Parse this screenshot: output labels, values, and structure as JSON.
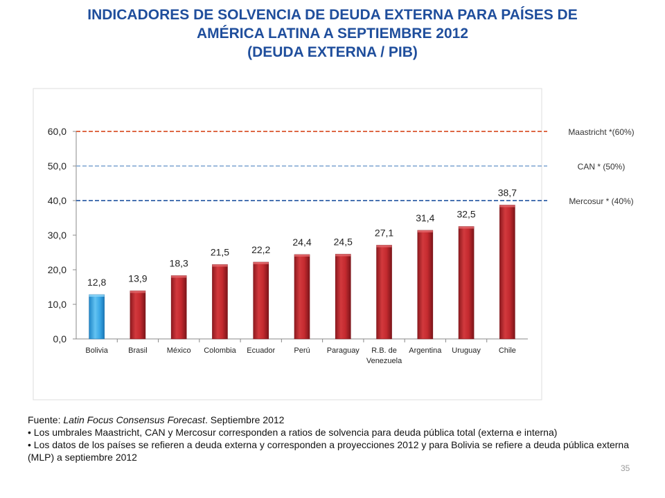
{
  "header": {
    "title_line1": "INDICADORES DE SOLVENCIA DE DEUDA EXTERNA PARA PAÍSES DE",
    "title_line2": "AMÉRICA LATINA A SEPTIEMBRE 2012",
    "title_line3": "(DEUDA EXTERNA / PIB)"
  },
  "chart_data": {
    "type": "bar",
    "title": "INDICADORES DE SOLVENCIA DE DEUDA EXTERNA PARA PAÍSES DE AMÉRICA LATINA A SEPTIEMBRE 2012 (DEUDA EXTERNA / PIB)",
    "categories": [
      "Bolivia",
      "Brasil",
      "México",
      "Colombia",
      "Ecuador",
      "Perú",
      "Paraguay",
      "R.B. de Venezuela",
      "Argentina",
      "Uruguay",
      "Chile"
    ],
    "category_label_lines": [
      [
        "Bolivia"
      ],
      [
        "Brasil"
      ],
      [
        "México"
      ],
      [
        "Colombia"
      ],
      [
        "Ecuador"
      ],
      [
        "Perú"
      ],
      [
        "Paraguay"
      ],
      [
        "R.B. de",
        "Venezuela"
      ],
      [
        "Argentina"
      ],
      [
        "Uruguay"
      ],
      [
        "Chile"
      ]
    ],
    "values": [
      12.8,
      13.9,
      18.3,
      21.5,
      22.2,
      24.4,
      24.5,
      27.1,
      31.4,
      32.5,
      38.7
    ],
    "value_labels": [
      "12,8",
      "13,9",
      "18,3",
      "21,5",
      "22,2",
      "24,4",
      "24,5",
      "27,1",
      "31,4",
      "32,5",
      "38,7"
    ],
    "bar_colors": [
      "#3aa8e6",
      "#c0262c",
      "#c0262c",
      "#c0262c",
      "#c0262c",
      "#c0262c",
      "#c0262c",
      "#c0262c",
      "#c0262c",
      "#c0262c",
      "#c0262c"
    ],
    "ylim": [
      0,
      60
    ],
    "yticks": [
      0,
      10,
      20,
      30,
      40,
      50,
      60
    ],
    "ytick_labels": [
      "0,0",
      "10,0",
      "20,0",
      "30,0",
      "40,0",
      "50,0",
      "60,0"
    ],
    "xlabel": "",
    "ylabel": "",
    "thresholds": [
      {
        "name": "Maastricht",
        "value": 60,
        "label": "Maastricht *(60%)",
        "color": "#d9542c"
      },
      {
        "name": "CAN",
        "value": 50,
        "label": "CAN * (50%)",
        "color": "#8fb0d6"
      },
      {
        "name": "Mercosur",
        "value": 40,
        "label": "Mercosur * (40%)",
        "color": "#2f5fa6"
      }
    ]
  },
  "notes": {
    "source_prefix": "Fuente: ",
    "source_italic": "Latin Focus Consensus Forecast",
    "source_suffix": ". Septiembre 2012",
    "bullet1": "• Los umbrales Maastricht, CAN y Mercosur corresponden a ratios de solvencia para deuda pública total (externa e interna)",
    "bullet2": "• Los datos de los países se refieren a deuda externa y corresponden a proyecciones 2012 y para Bolivia se refiere a deuda pública externa (MLP) a septiembre 2012"
  },
  "page_number": "35"
}
